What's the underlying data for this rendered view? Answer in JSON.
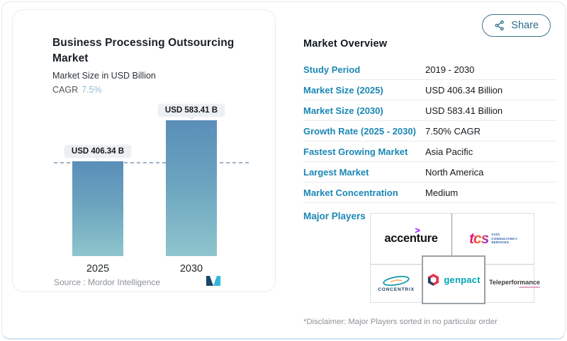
{
  "share": {
    "label": "Share"
  },
  "chart_panel": {
    "title": "Business Processing Outsourcing Market",
    "subtitle": "Market Size in USD Billion",
    "cagr_label": "CAGR",
    "cagr_value": "7.5%",
    "source_label": "Source :  Mordor Intelligence"
  },
  "chart_data": {
    "type": "bar",
    "categories": [
      "2025",
      "2030"
    ],
    "values": [
      406.34,
      583.41
    ],
    "value_labels": [
      "USD 406.34 B",
      "USD 583.41 B"
    ],
    "title": "Business Processing Outsourcing Market",
    "ylabel": "Market Size in USD Billion",
    "cagr": "7.5%",
    "ylim": [
      0,
      583.41
    ],
    "grid": false,
    "annotations": [
      "dashed reference line at 2025 value"
    ],
    "source": "Mordor Intelligence"
  },
  "overview": {
    "heading": "Market Overview",
    "rows": [
      {
        "label": "Study Period",
        "value": "2019 - 2030"
      },
      {
        "label": "Market Size (2025)",
        "value": "USD 406.34 Billion"
      },
      {
        "label": "Market Size (2030)",
        "value": "USD 583.41 Billion"
      },
      {
        "label": "Growth Rate (2025 - 2030)",
        "value": "7.50% CAGR"
      },
      {
        "label": "Fastest Growing Market",
        "value": "Asia Pacific"
      },
      {
        "label": "Largest Market",
        "value": "North America"
      },
      {
        "label": "Market Concentration",
        "value": "Medium"
      }
    ],
    "major_players_label": "Major Players",
    "players": [
      {
        "name": "Accenture",
        "wordmark": "accenture",
        "symbol": ">"
      },
      {
        "name": "Tata Consultancy Services",
        "wordmark": "tcs",
        "line1": "TATA",
        "line2": "CONSULTANCY",
        "line3": "SERVICES"
      },
      {
        "name": "Concentrix",
        "wordmark": "CONCENTRIX"
      },
      {
        "name": "Genpact",
        "wordmark": "genpact"
      },
      {
        "name": "Teleperformance",
        "wordmark": "Teleperformance"
      }
    ],
    "disclaimer": "*Disclaimer: Major Players sorted in no particular order"
  },
  "colors": {
    "accent-teal": "#1b87b4",
    "share-blue": "#2e6f8e",
    "bar-top": "#5a8eb8",
    "bar-bottom": "#8ec5cd",
    "cagr-blue": "#95bbd3",
    "dark-text": "#1a2026",
    "muted-text": "#8d9298",
    "label-box-bg": "#edf0f2",
    "dashed-line": "#9db3c4"
  }
}
